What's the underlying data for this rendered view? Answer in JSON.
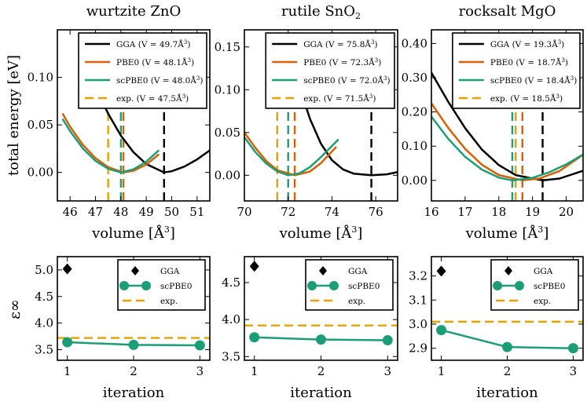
{
  "figure": {
    "top_ylabel": "total energy [eV]",
    "bottom_ylabel": "ε∞",
    "colors": {
      "GGA": "#000000",
      "PBE0": "#d95f02",
      "scPBE0": "#1b9e77",
      "exp": "#e6a100"
    }
  },
  "chart_data": [
    {
      "id": "zno-energy",
      "type": "line",
      "title": "wurtzite ZnO",
      "xlabel": "volume [Å³]",
      "ylabel": "total energy [eV]",
      "xlim": [
        45.5,
        51.5
      ],
      "ylim": [
        -0.03,
        0.15
      ],
      "xticks": [
        46,
        47,
        48,
        49,
        50,
        51
      ],
      "yticks": [
        0.0,
        0.05,
        0.1
      ],
      "ytick_labels": [
        "0.00",
        "0.05",
        "0.10"
      ],
      "legend": [
        "GGA (V = 49.7Å³)",
        "PBE0 (V = 48.1Å³)",
        "scPBE0 (V = 48.0Å³)",
        "exp. (V = 47.5Å³)"
      ],
      "legend_placement": "top-right",
      "series": [
        {
          "name": "GGA",
          "x": [
            47.0,
            47.5,
            48.0,
            48.5,
            49.0,
            49.7,
            50.0,
            50.5,
            51.0,
            51.5
          ],
          "y": [
            0.0897,
            0.0617,
            0.0387,
            0.0211,
            0.0088,
            0.0,
            0.0012,
            0.0062,
            0.0137,
            0.0232
          ]
        },
        {
          "name": "PBE0",
          "x": [
            45.7,
            46.0,
            46.5,
            47.0,
            47.5,
            48.1,
            48.5,
            49.0,
            49.5
          ],
          "y": [
            0.0621,
            0.048,
            0.0291,
            0.015,
            0.0054,
            0.0,
            0.0018,
            0.0083,
            0.0191
          ]
        },
        {
          "name": "scPBE0",
          "x": [
            45.7,
            46.0,
            46.5,
            47.0,
            47.5,
            48.0,
            48.5,
            49.0,
            49.5
          ],
          "y": [
            0.0564,
            0.0434,
            0.0253,
            0.0121,
            0.0038,
            0.0,
            0.0033,
            0.0114,
            0.0234
          ]
        }
      ],
      "vlines": [
        {
          "name": "GGA",
          "x": 49.7
        },
        {
          "name": "PBE0",
          "x": 48.1
        },
        {
          "name": "scPBE0",
          "x": 48.0
        },
        {
          "name": "exp",
          "x": 47.5
        }
      ]
    },
    {
      "id": "sno2-energy",
      "type": "line",
      "title": "rutile SnO₂",
      "xlabel": "volume [Å³]",
      "ylabel": "",
      "xlim": [
        70,
        77
      ],
      "ylim": [
        -0.03,
        0.17
      ],
      "xticks": [
        70,
        72,
        74,
        76
      ],
      "yticks": [
        0.0,
        0.05,
        0.1,
        0.15
      ],
      "ytick_labels": [
        "0.00",
        "0.05",
        "0.10",
        "0.15"
      ],
      "legend": [
        "GGA (V = 75.8Å³)",
        "PBE0 (V = 72.3Å³)",
        "scPBE0 (V = 72.0Å³)",
        "exp. (V = 71.5Å³)"
      ],
      "legend_placement": "top-right",
      "series": [
        {
          "name": "GGA",
          "x": [
            72.3,
            72.5,
            73.0,
            73.5,
            74.0,
            74.5,
            75.0,
            75.8,
            76.5,
            77.0
          ],
          "y": [
            0.1225,
            0.1043,
            0.0657,
            0.0368,
            0.0176,
            0.0069,
            0.0018,
            0.0,
            0.0011,
            0.0038
          ]
        },
        {
          "name": "PBE0",
          "x": [
            70.0,
            70.5,
            71.0,
            71.5,
            72.3,
            73.0,
            73.5,
            74.2
          ],
          "y": [
            0.05,
            0.0321,
            0.0166,
            0.006,
            0.0,
            0.0045,
            0.0143,
            0.0333
          ]
        },
        {
          "name": "scPBE0",
          "x": [
            70.0,
            70.5,
            71.0,
            71.5,
            72.0,
            72.5,
            73.0,
            73.5,
            74.3
          ],
          "y": [
            0.0444,
            0.0272,
            0.0136,
            0.0046,
            0.0,
            0.0021,
            0.0096,
            0.0213,
            0.042
          ]
        }
      ],
      "vlines": [
        {
          "name": "GGA",
          "x": 75.8
        },
        {
          "name": "PBE0",
          "x": 72.3
        },
        {
          "name": "scPBE0",
          "x": 72.0
        },
        {
          "name": "exp",
          "x": 71.5
        }
      ]
    },
    {
      "id": "mgo-energy",
      "type": "line",
      "title": "rocksalt MgO",
      "xlabel": "volume [Å³]",
      "ylabel": "",
      "xlim": [
        16,
        20.5
      ],
      "ylim": [
        -0.06,
        0.44
      ],
      "xticks": [
        16,
        17,
        18,
        19,
        20
      ],
      "yticks": [
        0.0,
        0.1,
        0.2,
        0.3,
        0.4
      ],
      "ytick_labels": [
        "0.00",
        "0.10",
        "0.20",
        "0.30",
        "0.40"
      ],
      "legend": [
        "GGA (V = 19.3Å³)",
        "PBE0 (V = 18.7Å³)",
        "scPBE0 (V = 18.4Å³)",
        "exp. (V = 18.5Å³)"
      ],
      "legend_placement": "top-right",
      "series": [
        {
          "name": "GGA",
          "x": [
            16.0,
            16.5,
            17.0,
            17.5,
            18.0,
            18.5,
            19.3,
            19.8,
            20.5
          ],
          "y": [
            0.3148,
            0.2297,
            0.1529,
            0.09,
            0.0449,
            0.0154,
            0.0,
            0.0054,
            0.0283
          ]
        },
        {
          "name": "PBE0",
          "x": [
            16.0,
            16.5,
            17.0,
            17.5,
            18.0,
            18.7,
            19.2,
            19.8,
            20.5
          ],
          "y": [
            0.2251,
            0.1536,
            0.092,
            0.0458,
            0.0158,
            0.0,
            0.0054,
            0.0273,
            0.0752
          ]
        },
        {
          "name": "scPBE0",
          "x": [
            16.0,
            16.5,
            17.0,
            17.5,
            18.0,
            18.4,
            19.0,
            19.5,
            20.0,
            20.5
          ],
          "y": [
            0.1864,
            0.1215,
            0.0689,
            0.0316,
            0.0082,
            0.0,
            0.0075,
            0.0239,
            0.0468,
            0.0757
          ]
        }
      ],
      "vlines": [
        {
          "name": "GGA",
          "x": 19.3
        },
        {
          "name": "PBE0",
          "x": 18.7
        },
        {
          "name": "scPBE0",
          "x": 18.4
        },
        {
          "name": "exp",
          "x": 18.5
        }
      ]
    },
    {
      "id": "zno-eps",
      "type": "line",
      "title": "",
      "xlabel": "iteration",
      "ylabel": "ε∞",
      "xlim": [
        0.85,
        3.15
      ],
      "ylim": [
        3.3,
        5.25
      ],
      "xticks": [
        1,
        2,
        3
      ],
      "yticks": [
        3.5,
        4.0,
        4.5,
        5.0
      ],
      "ytick_labels": [
        "3.5",
        "4.0",
        "4.5",
        "5.0"
      ],
      "legend": [
        "GGA",
        "scPBE0",
        "exp."
      ],
      "legend_placement": "top-right",
      "gga_point": {
        "x": 1,
        "y": 5.02
      },
      "scpbe0": {
        "x": [
          1,
          2,
          3
        ],
        "y": [
          3.64,
          3.59,
          3.58
        ]
      },
      "exp": 3.72
    },
    {
      "id": "sno2-eps",
      "type": "line",
      "title": "",
      "xlabel": "iteration",
      "ylabel": "",
      "xlim": [
        0.85,
        3.15
      ],
      "ylim": [
        3.45,
        4.85
      ],
      "xticks": [
        1,
        2,
        3
      ],
      "yticks": [
        3.5,
        4.0,
        4.5
      ],
      "ytick_labels": [
        "3.5",
        "4.0",
        "4.5"
      ],
      "legend": [
        "GGA",
        "scPBE0",
        "exp."
      ],
      "legend_placement": "top-right",
      "gga_point": {
        "x": 1,
        "y": 4.72
      },
      "scpbe0": {
        "x": [
          1,
          2,
          3
        ],
        "y": [
          3.76,
          3.73,
          3.72
        ]
      },
      "exp": 3.92
    },
    {
      "id": "mgo-eps",
      "type": "line",
      "title": "",
      "xlabel": "iteration",
      "ylabel": "",
      "xlim": [
        0.85,
        3.15
      ],
      "ylim": [
        2.85,
        3.28
      ],
      "xticks": [
        1,
        2,
        3
      ],
      "yticks": [
        2.9,
        3.0,
        3.1,
        3.2
      ],
      "ytick_labels": [
        "2.9",
        "3.0",
        "3.1",
        "3.2"
      ],
      "legend": [
        "GGA",
        "scPBE0",
        "exp."
      ],
      "legend_placement": "top-right",
      "gga_point": {
        "x": 1,
        "y": 3.22
      },
      "scpbe0": {
        "x": [
          1,
          2,
          3
        ],
        "y": [
          2.975,
          2.905,
          2.9
        ]
      },
      "exp": 3.01
    }
  ]
}
